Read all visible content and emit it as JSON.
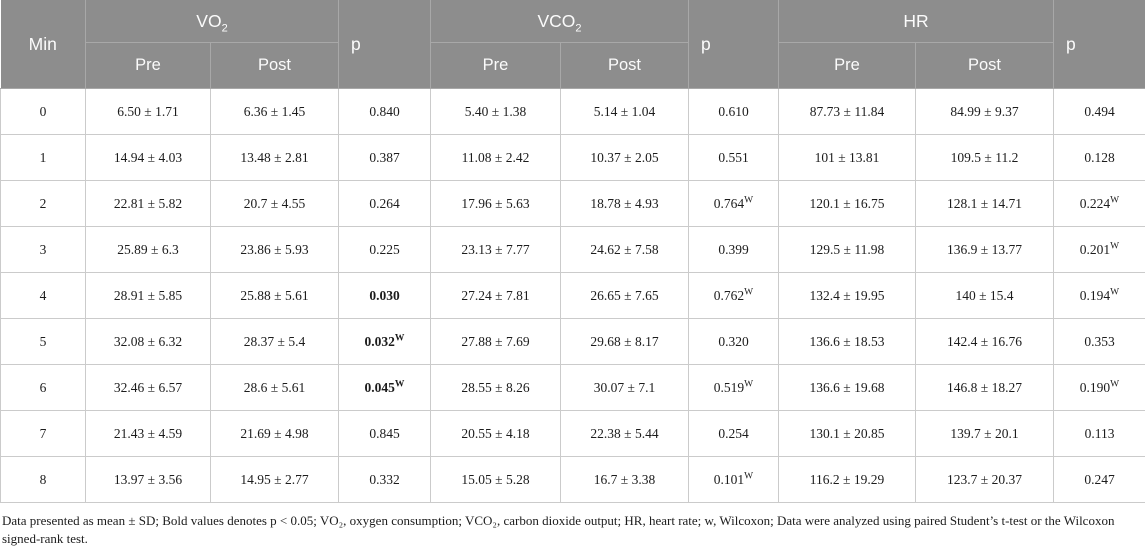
{
  "table": {
    "header": {
      "min_label": "Min",
      "p_label": "p",
      "pre_label": "Pre",
      "post_label": "Post",
      "groups": [
        {
          "label": "VO",
          "sub": "2"
        },
        {
          "label": "VCO",
          "sub": "2"
        },
        {
          "label": "HR",
          "sub": ""
        }
      ]
    },
    "rows": [
      {
        "min": "0",
        "vo2_pre": "6.50 ± 1.71",
        "vo2_post": "6.36 ± 1.45",
        "vo2_p": {
          "text": "0.840",
          "sup": "",
          "bold": false
        },
        "vco2_pre": "5.40 ± 1.38",
        "vco2_post": "5.14 ± 1.04",
        "vco2_p": {
          "text": "0.610",
          "sup": "",
          "bold": false
        },
        "hr_pre": "87.73 ± 11.84",
        "hr_post": "84.99 ± 9.37",
        "hr_p": {
          "text": "0.494",
          "sup": "",
          "bold": false
        }
      },
      {
        "min": "1",
        "vo2_pre": "14.94 ± 4.03",
        "vo2_post": "13.48 ± 2.81",
        "vo2_p": {
          "text": "0.387",
          "sup": "",
          "bold": false
        },
        "vco2_pre": "11.08 ± 2.42",
        "vco2_post": "10.37 ± 2.05",
        "vco2_p": {
          "text": "0.551",
          "sup": "",
          "bold": false
        },
        "hr_pre": "101 ± 13.81",
        "hr_post": "109.5 ± 11.2",
        "hr_p": {
          "text": "0.128",
          "sup": "",
          "bold": false
        }
      },
      {
        "min": "2",
        "vo2_pre": "22.81 ± 5.82",
        "vo2_post": "20.7 ± 4.55",
        "vo2_p": {
          "text": "0.264",
          "sup": "",
          "bold": false
        },
        "vco2_pre": "17.96 ± 5.63",
        "vco2_post": "18.78 ± 4.93",
        "vco2_p": {
          "text": "0.764",
          "sup": "W",
          "bold": false
        },
        "hr_pre": "120.1 ± 16.75",
        "hr_post": "128.1 ± 14.71",
        "hr_p": {
          "text": "0.224",
          "sup": "W",
          "bold": false
        }
      },
      {
        "min": "3",
        "vo2_pre": "25.89 ± 6.3",
        "vo2_post": "23.86 ± 5.93",
        "vo2_p": {
          "text": "0.225",
          "sup": "",
          "bold": false
        },
        "vco2_pre": "23.13 ± 7.77",
        "vco2_post": "24.62 ± 7.58",
        "vco2_p": {
          "text": "0.399",
          "sup": "",
          "bold": false
        },
        "hr_pre": "129.5 ± 11.98",
        "hr_post": "136.9 ± 13.77",
        "hr_p": {
          "text": "0.201",
          "sup": "W",
          "bold": false
        }
      },
      {
        "min": "4",
        "vo2_pre": "28.91 ± 5.85",
        "vo2_post": "25.88 ± 5.61",
        "vo2_p": {
          "text": "0.030",
          "sup": "",
          "bold": true
        },
        "vco2_pre": "27.24 ± 7.81",
        "vco2_post": "26.65 ± 7.65",
        "vco2_p": {
          "text": "0.762",
          "sup": "W",
          "bold": false
        },
        "hr_pre": "132.4 ± 19.95",
        "hr_post": "140 ± 15.4",
        "hr_p": {
          "text": "0.194",
          "sup": "W",
          "bold": false
        }
      },
      {
        "min": "5",
        "vo2_pre": "32.08 ± 6.32",
        "vo2_post": "28.37 ± 5.4",
        "vo2_p": {
          "text": "0.032",
          "sup": "W",
          "bold": true
        },
        "vco2_pre": "27.88 ± 7.69",
        "vco2_post": "29.68 ± 8.17",
        "vco2_p": {
          "text": "0.320",
          "sup": "",
          "bold": false
        },
        "hr_pre": "136.6 ± 18.53",
        "hr_post": "142.4 ± 16.76",
        "hr_p": {
          "text": "0.353",
          "sup": "",
          "bold": false
        }
      },
      {
        "min": "6",
        "vo2_pre": "32.46 ± 6.57",
        "vo2_post": "28.6 ± 5.61",
        "vo2_p": {
          "text": "0.045",
          "sup": "W",
          "bold": true
        },
        "vco2_pre": "28.55 ± 8.26",
        "vco2_post": "30.07 ± 7.1",
        "vco2_p": {
          "text": "0.519",
          "sup": "W",
          "bold": false
        },
        "hr_pre": "136.6 ± 19.68",
        "hr_post": "146.8 ± 18.27",
        "hr_p": {
          "text": "0.190",
          "sup": "W",
          "bold": false
        }
      },
      {
        "min": "7",
        "vo2_pre": "21.43 ± 4.59",
        "vo2_post": "21.69 ± 4.98",
        "vo2_p": {
          "text": "0.845",
          "sup": "",
          "bold": false
        },
        "vco2_pre": "20.55 ± 4.18",
        "vco2_post": "22.38 ± 5.44",
        "vco2_p": {
          "text": "0.254",
          "sup": "",
          "bold": false
        },
        "hr_pre": "130.1 ± 20.85",
        "hr_post": "139.7 ± 20.1",
        "hr_p": {
          "text": "0.113",
          "sup": "",
          "bold": false
        }
      },
      {
        "min": "8",
        "vo2_pre": "13.97 ± 3.56",
        "vo2_post": "14.95 ± 2.77",
        "vo2_p": {
          "text": "0.332",
          "sup": "",
          "bold": false
        },
        "vco2_pre": "15.05 ± 5.28",
        "vco2_post": "16.7 ± 3.38",
        "vco2_p": {
          "text": "0.101",
          "sup": "W",
          "bold": false
        },
        "hr_pre": "116.2 ± 19.29",
        "hr_post": "123.7 ± 20.37",
        "hr_p": {
          "text": "0.247",
          "sup": "",
          "bold": false
        }
      }
    ]
  },
  "footnote": "Data presented as mean ± SD; Bold values denotes p < 0.05; VO₂, oxygen consumption; VCO₂, carbon dioxide output; HR, heart rate; w, Wilcoxon; Data were analyzed using paired Student’s t-test or the Wilcoxon signed-rank test.",
  "colors": {
    "header_bg": "#8d8d8d",
    "header_divider": "#a8a8a8",
    "header_text": "#fbfbfb",
    "body_border": "#cbcbcb",
    "body_text": "#1c1c1c"
  }
}
